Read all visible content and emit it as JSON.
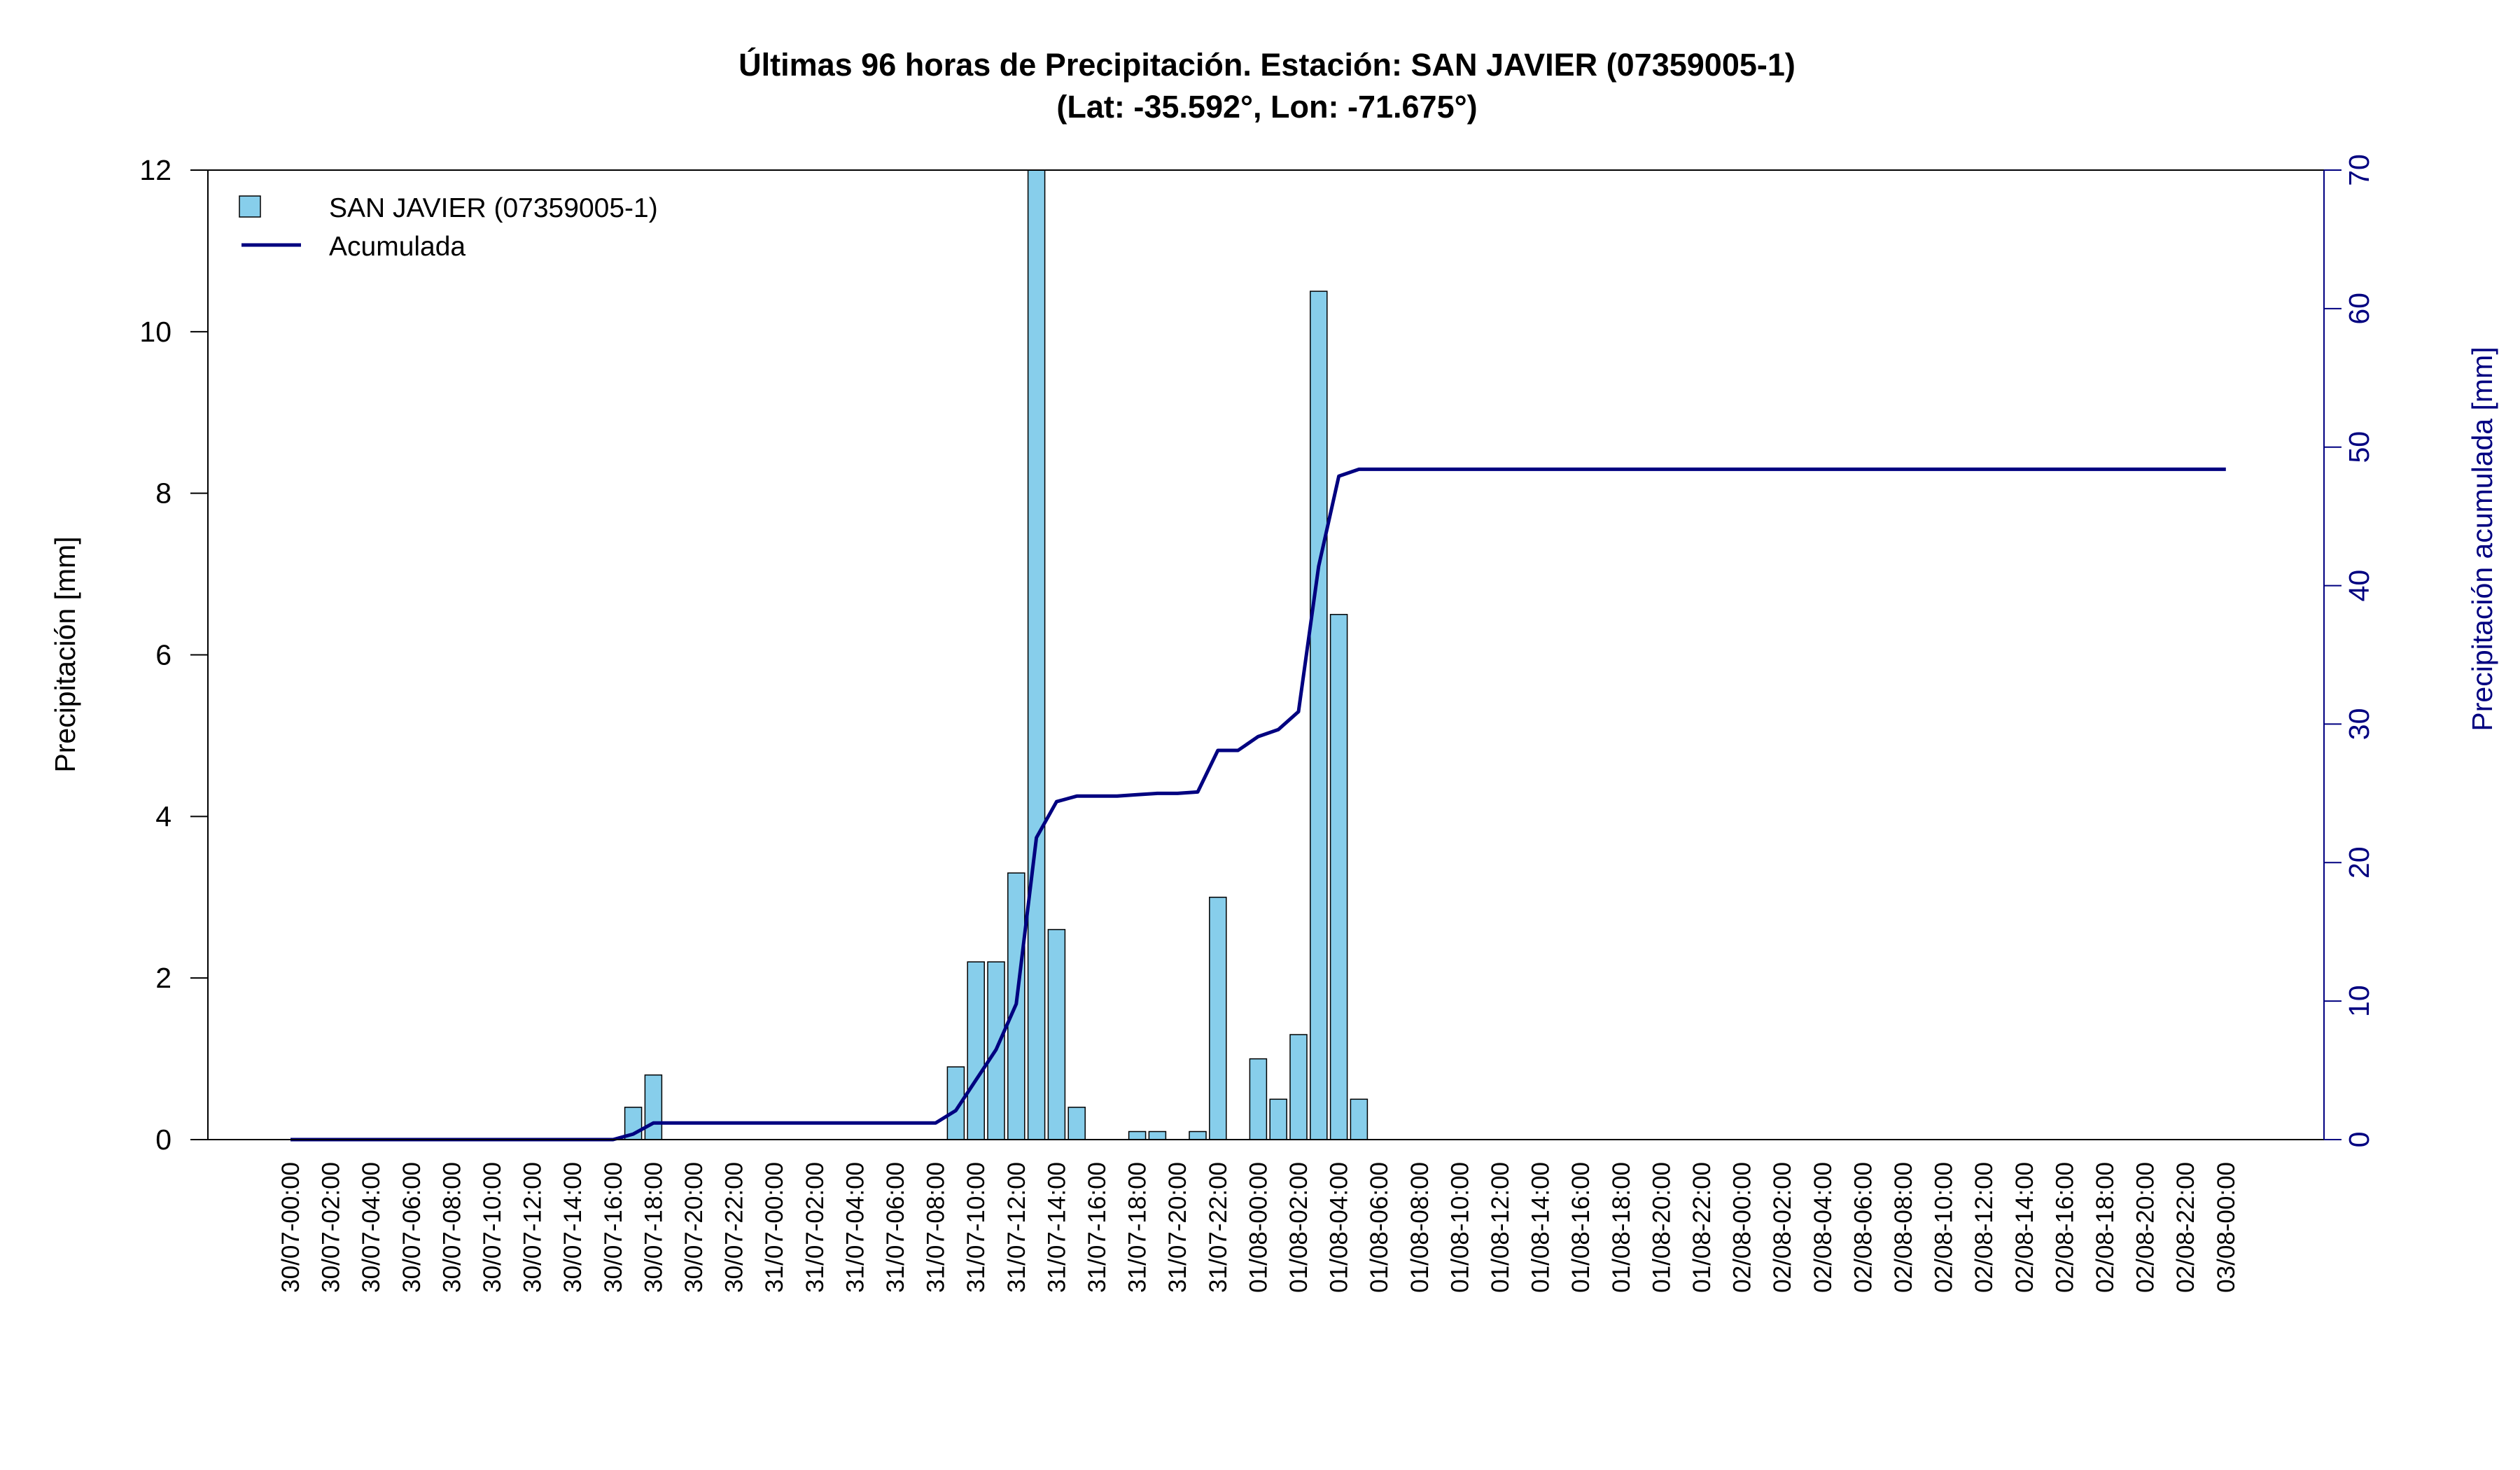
{
  "chart_data": {
    "type": "bar",
    "title": "Últimas 96 horas de Precipitación. Estación: SAN JAVIER (07359005-1)",
    "subtitle": "(Lat: -35.592°, Lon: -71.675°)",
    "ylabel": "Precipitación [mm]",
    "y2label": "Precipitación acumulada [mm]",
    "ylim": [
      0,
      12
    ],
    "y2lim": [
      0,
      70
    ],
    "yticks": [
      "0",
      "2",
      "4",
      "6",
      "8",
      "10",
      "12"
    ],
    "y2ticks": [
      "0",
      "10",
      "20",
      "30",
      "40",
      "50",
      "60",
      "70"
    ],
    "xticks": [
      "30/07-00:00",
      "30/07-02:00",
      "30/07-04:00",
      "30/07-06:00",
      "30/07-08:00",
      "30/07-10:00",
      "30/07-12:00",
      "30/07-14:00",
      "30/07-16:00",
      "30/07-18:00",
      "30/07-20:00",
      "30/07-22:00",
      "31/07-00:00",
      "31/07-02:00",
      "31/07-04:00",
      "31/07-06:00",
      "31/07-08:00",
      "31/07-10:00",
      "31/07-12:00",
      "31/07-14:00",
      "31/07-16:00",
      "31/07-18:00",
      "31/07-20:00",
      "31/07-22:00",
      "01/08-00:00",
      "01/08-02:00",
      "01/08-04:00",
      "01/08-06:00",
      "01/08-08:00",
      "01/08-10:00",
      "01/08-12:00",
      "01/08-14:00",
      "01/08-16:00",
      "01/08-18:00",
      "01/08-20:00",
      "01/08-22:00",
      "02/08-00:00",
      "02/08-02:00",
      "02/08-04:00",
      "02/08-06:00",
      "02/08-08:00",
      "02/08-10:00",
      "02/08-12:00",
      "02/08-14:00",
      "02/08-16:00",
      "02/08-18:00",
      "02/08-20:00",
      "02/08-22:00",
      "03/08-00:00"
    ],
    "legend": {
      "placement": "top-left",
      "bar_label": "SAN JAVIER (07359005-1)",
      "line_label": "Acumulada"
    },
    "series": [
      {
        "name": "SAN JAVIER (07359005-1)",
        "kind": "bar",
        "color": "#87ceeb",
        "values": [
          0,
          0,
          0,
          0,
          0,
          0,
          0,
          0,
          0,
          0,
          0,
          0,
          0,
          0,
          0,
          0,
          0,
          0.4,
          0.8,
          0,
          0,
          0,
          0,
          0,
          0,
          0,
          0,
          0,
          0,
          0,
          0,
          0,
          0,
          0.9,
          2.2,
          2.2,
          3.3,
          12,
          2.6,
          0.4,
          0,
          0,
          0.1,
          0.1,
          0,
          0.1,
          3,
          0,
          1,
          0.5,
          1.3,
          10.5,
          6.5,
          0.5,
          0,
          0,
          0,
          0,
          0,
          0,
          0,
          0,
          0,
          0,
          0,
          0,
          0,
          0,
          0,
          0,
          0,
          0,
          0,
          0,
          0,
          0,
          0,
          0,
          0,
          0,
          0,
          0,
          0,
          0,
          0,
          0,
          0,
          0,
          0,
          0,
          0,
          0,
          0,
          0,
          0,
          0,
          0
        ]
      },
      {
        "name": "Acumulada",
        "kind": "line",
        "axis": "right",
        "color": "#000080",
        "values": [
          0,
          0,
          0,
          0,
          0,
          0,
          0,
          0,
          0,
          0,
          0,
          0,
          0,
          0,
          0,
          0,
          0,
          0.4,
          1.2,
          1.2,
          1.2,
          1.2,
          1.2,
          1.2,
          1.2,
          1.2,
          1.2,
          1.2,
          1.2,
          1.2,
          1.2,
          1.2,
          1.2,
          2.1,
          4.3,
          6.5,
          9.8,
          21.8,
          24.4,
          24.8,
          24.8,
          24.8,
          24.9,
          25,
          25,
          25.1,
          28.1,
          28.1,
          29.1,
          29.6,
          30.9,
          41.4,
          47.9,
          48.4,
          48.4,
          48.4,
          48.4,
          48.4,
          48.4,
          48.4,
          48.4,
          48.4,
          48.4,
          48.4,
          48.4,
          48.4,
          48.4,
          48.4,
          48.4,
          48.4,
          48.4,
          48.4,
          48.4,
          48.4,
          48.4,
          48.4,
          48.4,
          48.4,
          48.4,
          48.4,
          48.4,
          48.4,
          48.4,
          48.4,
          48.4,
          48.4,
          48.4,
          48.4,
          48.4,
          48.4,
          48.4,
          48.4,
          48.4,
          48.4,
          48.4,
          48.4,
          48.4
        ]
      }
    ]
  }
}
